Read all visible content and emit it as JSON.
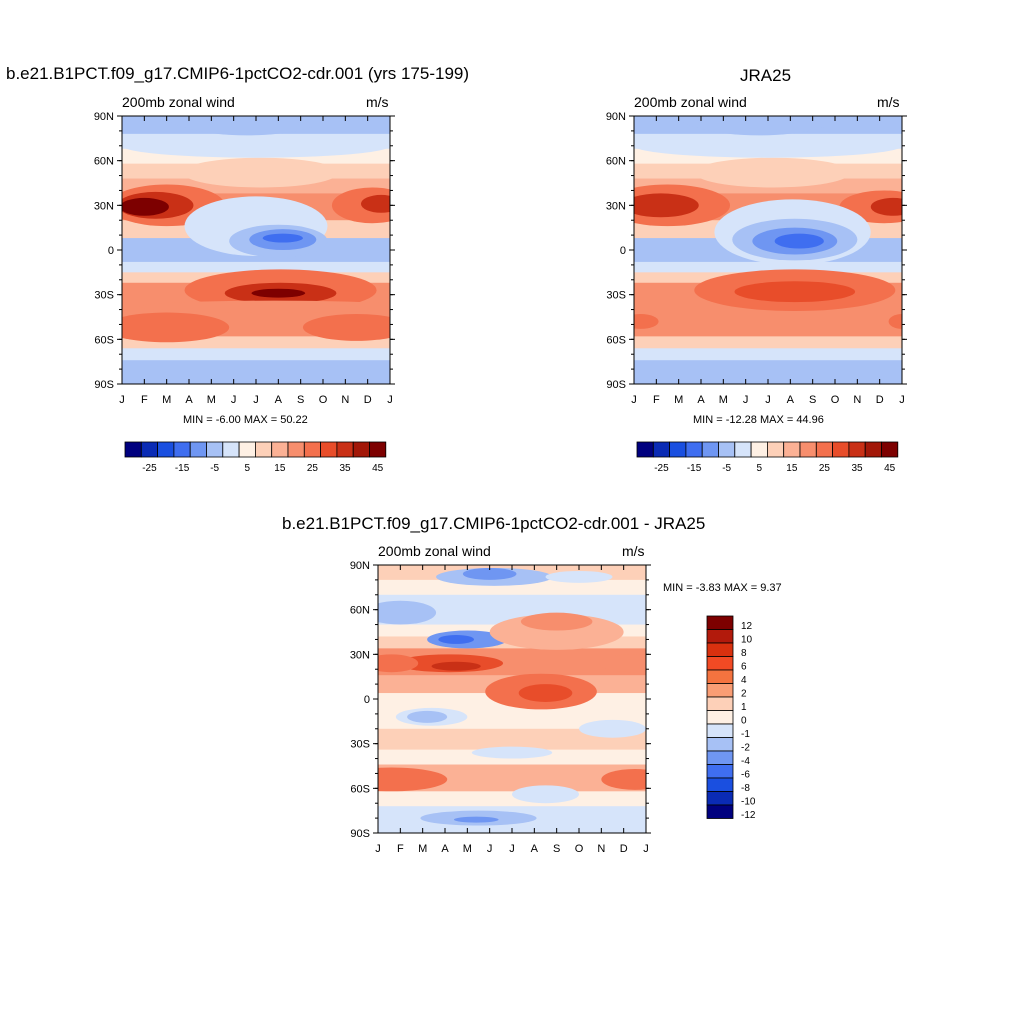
{
  "chart_data": [
    {
      "type": "heatmap",
      "title": "b.e21.B1PCT.f09_g17.CMIP6-1pctCO2-cdr.001 (yrs 175-199)",
      "left_label": "200mb zonal wind",
      "right_label": "m/s",
      "x_tick_labels": [
        "J",
        "F",
        "M",
        "A",
        "M",
        "J",
        "J",
        "A",
        "S",
        "O",
        "N",
        "D",
        "J"
      ],
      "y_tick_labels": [
        "90N",
        "60N",
        "30N",
        "0",
        "30S",
        "60S",
        "90S"
      ],
      "y_range": [
        -90,
        90
      ],
      "stats_text": "MIN =  -6.00 MAX =  50.22",
      "min": -6.0,
      "max": 50.22,
      "colorbar_orientation": "horizontal",
      "colorbar_labels": [
        "-25",
        "-15",
        "-5",
        "5",
        "15",
        "25",
        "35",
        "45"
      ],
      "colorbar_levels": [
        -30,
        -25,
        -20,
        -15,
        -10,
        -5,
        0,
        5,
        10,
        15,
        20,
        25,
        30,
        35,
        40,
        45,
        50
      ],
      "colorbar_colors": [
        "#00007f",
        "#0a2bb5",
        "#1a4fe0",
        "#3f6ef0",
        "#6f96f2",
        "#a7c1f5",
        "#d6e4fa",
        "#fef0e4",
        "#fdd0b8",
        "#fbb195",
        "#f78e6d",
        "#f3704d",
        "#e84d2a",
        "#c93016",
        "#a21708",
        "#7d0000"
      ]
    },
    {
      "type": "heatmap",
      "title": "JRA25",
      "left_label": "200mb zonal wind",
      "right_label": "m/s",
      "x_tick_labels": [
        "J",
        "F",
        "M",
        "A",
        "M",
        "J",
        "J",
        "A",
        "S",
        "O",
        "N",
        "D",
        "J"
      ],
      "y_tick_labels": [
        "90N",
        "60N",
        "30N",
        "0",
        "30S",
        "60S",
        "90S"
      ],
      "y_range": [
        -90,
        90
      ],
      "stats_text": "MIN = -12.28 MAX =  44.96",
      "min": -12.28,
      "max": 44.96,
      "colorbar_orientation": "horizontal",
      "colorbar_labels": [
        "-25",
        "-15",
        "-5",
        "5",
        "15",
        "25",
        "35",
        "45"
      ],
      "colorbar_levels": [
        -30,
        -25,
        -20,
        -15,
        -10,
        -5,
        0,
        5,
        10,
        15,
        20,
        25,
        30,
        35,
        40,
        45,
        50
      ],
      "colorbar_colors": [
        "#00007f",
        "#0a2bb5",
        "#1a4fe0",
        "#3f6ef0",
        "#6f96f2",
        "#a7c1f5",
        "#d6e4fa",
        "#fef0e4",
        "#fdd0b8",
        "#fbb195",
        "#f78e6d",
        "#f3704d",
        "#e84d2a",
        "#c93016",
        "#a21708",
        "#7d0000"
      ]
    },
    {
      "type": "heatmap",
      "title": "b.e21.B1PCT.f09_g17.CMIP6-1pctCO2-cdr.001 - JRA25",
      "left_label": "200mb zonal wind",
      "right_label": "m/s",
      "x_tick_labels": [
        "J",
        "F",
        "M",
        "A",
        "M",
        "J",
        "J",
        "A",
        "S",
        "O",
        "N",
        "D",
        "J"
      ],
      "y_tick_labels": [
        "90N",
        "60N",
        "30N",
        "0",
        "30S",
        "60S",
        "90S"
      ],
      "y_range": [
        -90,
        90
      ],
      "stats_text": "MIN =  -3.83 MAX =   9.37",
      "min": -3.83,
      "max": 9.37,
      "colorbar_orientation": "vertical",
      "colorbar_labels": [
        "12",
        "10",
        "8",
        "6",
        "4",
        "2",
        "1",
        "0",
        "-1",
        "-2",
        "-4",
        "-6",
        "-8",
        "-10",
        "-12"
      ],
      "colorbar_colors": [
        "#7d0000",
        "#b21a0c",
        "#d9310f",
        "#f24a24",
        "#f4733f",
        "#f99d74",
        "#fdd0b8",
        "#fef0e4",
        "#d6e4fa",
        "#a7c1f5",
        "#6f96f2",
        "#3f6ef0",
        "#1a4fe0",
        "#0a2bb5",
        "#00007f"
      ]
    }
  ]
}
